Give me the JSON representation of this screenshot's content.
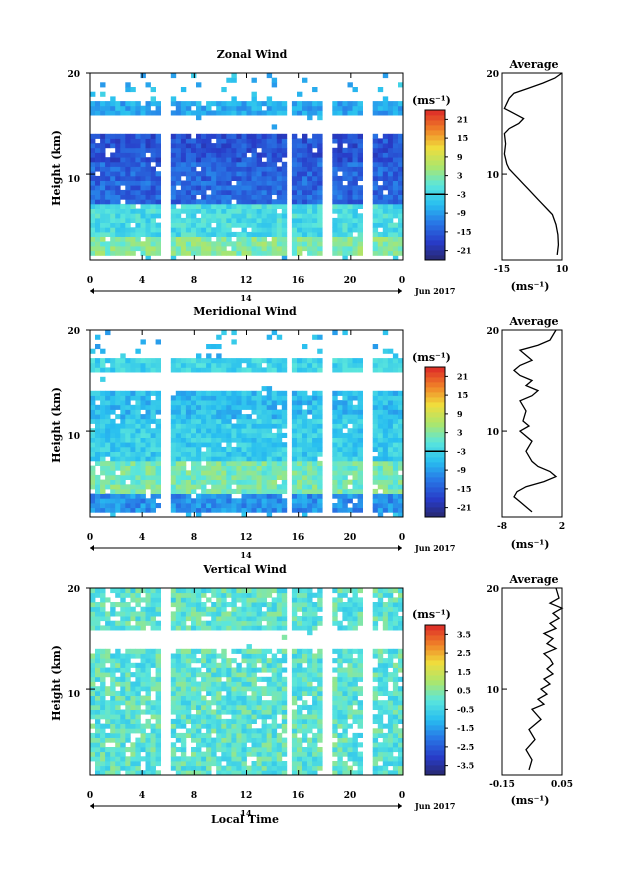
{
  "panels": [
    {
      "key": "zonal",
      "title": "Zonal Wind",
      "ylabel": "Height (km)",
      "unit": "(ms⁻¹)",
      "date": "Jun 2017",
      "day": "14",
      "xticks": [
        "0",
        "4",
        "8",
        "12",
        "16",
        "20",
        "0"
      ],
      "yticks": [
        "20",
        "10"
      ],
      "colorbar_ticks": [
        "21",
        "15",
        "9",
        "3",
        "-3",
        "-9",
        "-15",
        "-21"
      ],
      "colorbar_range": [
        -24,
        24
      ],
      "avg_title": "Average",
      "avg_xticks": [
        "-15",
        "10"
      ],
      "avg_xlim": [
        -15,
        10
      ],
      "avg_unit": "(ms⁻¹)",
      "avg_yticks": [
        "20",
        "10"
      ]
    },
    {
      "key": "meridional",
      "title": "Meridional Wind",
      "ylabel": "Height (km)",
      "unit": "(ms⁻¹)",
      "date": "Jun 2017",
      "day": "14",
      "xticks": [
        "0",
        "4",
        "8",
        "12",
        "16",
        "20",
        "0"
      ],
      "yticks": [
        "20",
        "10"
      ],
      "colorbar_ticks": [
        "21",
        "15",
        "9",
        "3",
        "-3",
        "-9",
        "-15",
        "-21"
      ],
      "colorbar_range": [
        -24,
        24
      ],
      "avg_title": "Average",
      "avg_xticks": [
        "-8",
        "2"
      ],
      "avg_xlim": [
        -8,
        2
      ],
      "avg_unit": "(ms⁻¹)",
      "avg_yticks": [
        "20",
        "10"
      ]
    },
    {
      "key": "vertical",
      "title": "Vertical Wind",
      "ylabel": "Height (km)",
      "unit": "(ms⁻¹)",
      "date": "Jun 2017",
      "day": "14",
      "xticks": [
        "0",
        "4",
        "8",
        "12",
        "16",
        "20",
        "0"
      ],
      "yticks": [
        "20",
        "10"
      ],
      "colorbar_ticks": [
        "3.5",
        "2.5",
        "1.5",
        "0.5",
        "-0.5",
        "-1.5",
        "-2.5",
        "-3.5"
      ],
      "colorbar_range": [
        -4,
        4
      ],
      "avg_title": "Average",
      "avg_xticks": [
        "-0.15",
        "0.05"
      ],
      "avg_xlim": [
        -0.15,
        0.05
      ],
      "avg_unit": "(ms⁻¹)",
      "avg_yticks": [
        "20",
        "10"
      ]
    }
  ],
  "xlabel": "Local Time",
  "chart_data": [
    {
      "type": "heatmap",
      "title": "Zonal Wind",
      "xlabel": "Local Time",
      "ylabel": "Height (km)",
      "xlim": [
        0,
        24
      ],
      "ylim": [
        1.5,
        20
      ],
      "clim": [
        -24,
        24
      ],
      "data_gaps_hours": [
        [
          5.6,
          6.0
        ],
        [
          15.0,
          15.5
        ],
        [
          18.0,
          18.5
        ],
        [
          21.0,
          21.5
        ]
      ],
      "description_bands": [
        {
          "height_km": [
            2.0,
            4.0
          ],
          "value": 3
        },
        {
          "height_km": [
            4.0,
            7.0
          ],
          "value": -2
        },
        {
          "height_km": [
            7.0,
            11.0
          ],
          "value": -14
        },
        {
          "height_km": [
            11.0,
            14.0
          ],
          "value": -16
        },
        {
          "height_km": [
            16.0,
            17.0
          ],
          "value": -8
        }
      ]
    },
    {
      "type": "line",
      "title": "Average",
      "xlabel": "(ms⁻¹)",
      "ylim": [
        1.5,
        20
      ],
      "xlim": [
        -15,
        10
      ],
      "x": [
        8,
        8.5,
        8.3,
        7.5,
        6,
        4,
        2,
        0,
        -2,
        -4,
        -6,
        -8,
        -10,
        -12,
        -13,
        -14,
        -13.5,
        -14,
        -12,
        -8,
        -6,
        -10,
        -14,
        -13,
        -12,
        -10,
        -4,
        2,
        7,
        10
      ],
      "y": [
        2,
        3,
        4,
        5,
        6,
        6.5,
        7,
        7.5,
        8,
        8.5,
        9,
        9.5,
        10,
        10.5,
        11,
        12,
        13,
        14,
        14.5,
        15,
        15.5,
        16,
        16.5,
        17,
        17.5,
        18,
        18.5,
        19,
        19.5,
        20
      ]
    },
    {
      "type": "heatmap",
      "title": "Meridional Wind",
      "xlabel": "Local Time",
      "ylabel": "Height (km)",
      "xlim": [
        0,
        24
      ],
      "ylim": [
        1.5,
        20
      ],
      "clim": [
        -24,
        24
      ],
      "data_gaps_hours": [
        [
          5.6,
          6.0
        ],
        [
          15.0,
          15.5
        ],
        [
          18.0,
          18.5
        ],
        [
          21.0,
          21.5
        ]
      ],
      "description_bands": [
        {
          "height_km": [
            2.0,
            4.0
          ],
          "value": -10
        },
        {
          "height_km": [
            4.0,
            7.0
          ],
          "value": 2
        },
        {
          "height_km": [
            7.0,
            11.0
          ],
          "value": -4
        },
        {
          "height_km": [
            11.0,
            14.0
          ],
          "value": -6
        },
        {
          "height_km": [
            16.0,
            17.0
          ],
          "value": -3
        }
      ]
    },
    {
      "type": "line",
      "title": "Average",
      "xlabel": "(ms⁻¹)",
      "ylim": [
        1.5,
        20
      ],
      "xlim": [
        -8,
        2
      ],
      "x": [
        -3,
        -5,
        -6,
        -5.5,
        -4,
        -1,
        1,
        0,
        -2,
        -3,
        -4,
        -3,
        -5,
        -3.5,
        -4.5,
        -4,
        -5,
        -3,
        -2,
        -4,
        -3,
        -5,
        -6,
        -5,
        -3,
        -4,
        -5,
        -2,
        0,
        1
      ],
      "y": [
        2,
        3,
        3.5,
        4,
        4.5,
        5,
        5.5,
        6,
        6.5,
        7,
        8,
        9,
        10,
        10.5,
        11,
        12,
        13,
        13.5,
        14,
        14.5,
        15,
        15.5,
        16,
        16.5,
        17,
        17.5,
        18,
        18.5,
        19,
        20
      ]
    },
    {
      "type": "heatmap",
      "title": "Vertical Wind",
      "xlabel": "Local Time",
      "ylabel": "Height (km)",
      "xlim": [
        0,
        24
      ],
      "ylim": [
        1.5,
        20
      ],
      "clim": [
        -4,
        4
      ],
      "data_gaps_hours": [
        [
          5.6,
          6.0
        ],
        [
          15.0,
          15.5
        ],
        [
          18.0,
          18.5
        ],
        [
          21.0,
          21.5
        ]
      ],
      "description_bands": [
        {
          "height_km": [
            1.5,
            14.0
          ],
          "value": 0
        },
        {
          "height_km": [
            15.0,
            20.0
          ],
          "value": 0
        }
      ]
    },
    {
      "type": "line",
      "title": "Average",
      "xlabel": "(ms⁻¹)",
      "ylim": [
        1.5,
        20
      ],
      "xlim": [
        -0.15,
        0.05
      ],
      "x": [
        -0.06,
        -0.05,
        -0.07,
        -0.04,
        -0.06,
        -0.02,
        -0.05,
        -0.01,
        -0.03,
        0.0,
        -0.02,
        0.01,
        -0.01,
        0.02,
        0.0,
        0.02,
        0.01,
        -0.01,
        0.03,
        0.0,
        0.02,
        -0.01,
        0.03,
        0.01,
        0.04,
        0.02,
        0.05,
        0.01,
        0.04,
        0.03
      ],
      "y": [
        2,
        3,
        4,
        5,
        6,
        7,
        8,
        8.5,
        9,
        9.5,
        10,
        10.5,
        11,
        11.5,
        12,
        12.5,
        13,
        13.5,
        14,
        14.5,
        15,
        15.5,
        16,
        16.5,
        17,
        17.5,
        18,
        18.5,
        19,
        20
      ]
    }
  ]
}
